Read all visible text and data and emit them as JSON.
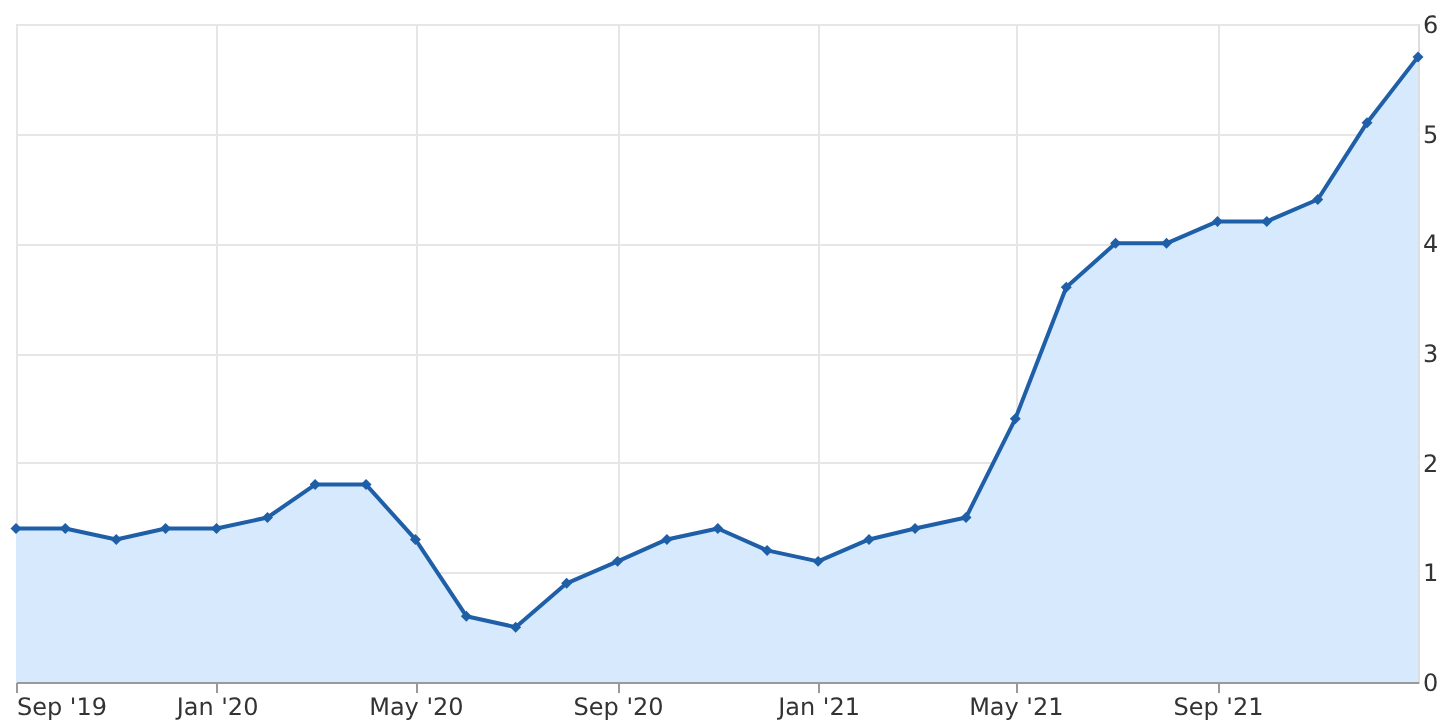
{
  "chart_data": {
    "type": "area",
    "x": [
      "2019-09",
      "2019-10",
      "2019-11",
      "2019-12",
      "2020-01",
      "2020-02",
      "2020-03",
      "2020-04",
      "2020-05",
      "2020-06",
      "2020-07",
      "2020-08",
      "2020-09",
      "2020-10",
      "2020-11",
      "2020-12",
      "2021-01",
      "2021-02",
      "2021-03",
      "2021-04",
      "2021-05",
      "2021-06",
      "2021-07",
      "2021-08",
      "2021-09",
      "2021-10",
      "2021-11",
      "2021-12",
      "2022-01"
    ],
    "series": [
      {
        "color": "#1f5fa8",
        "values": [
          1.4,
          1.4,
          1.3,
          1.4,
          1.4,
          1.5,
          1.8,
          1.8,
          1.3,
          0.6,
          0.5,
          0.9,
          1.1,
          1.3,
          1.4,
          1.2,
          1.1,
          1.3,
          1.4,
          1.5,
          2.4,
          3.6,
          4.0,
          4.0,
          4.2,
          4.2,
          4.4,
          5.1,
          5.7
        ]
      }
    ],
    "xlim": [
      "2019-09",
      "2022-01"
    ],
    "xticks": [
      {
        "value": "2019-09",
        "label": "Sep '19"
      },
      {
        "value": "2020-01",
        "label": "Jan '20"
      },
      {
        "value": "2020-05",
        "label": "May '20"
      },
      {
        "value": "2020-09",
        "label": "Sep '20"
      },
      {
        "value": "2021-01",
        "label": "Jan '21"
      },
      {
        "value": "2021-05",
        "label": "May '21"
      },
      {
        "value": "2021-09",
        "label": "Sep '21"
      }
    ],
    "ylim": [
      0,
      6
    ],
    "yticks": [
      0,
      1,
      2,
      3,
      4,
      5,
      6
    ],
    "grid": true,
    "marker": "diamond",
    "line_style": "solid"
  }
}
